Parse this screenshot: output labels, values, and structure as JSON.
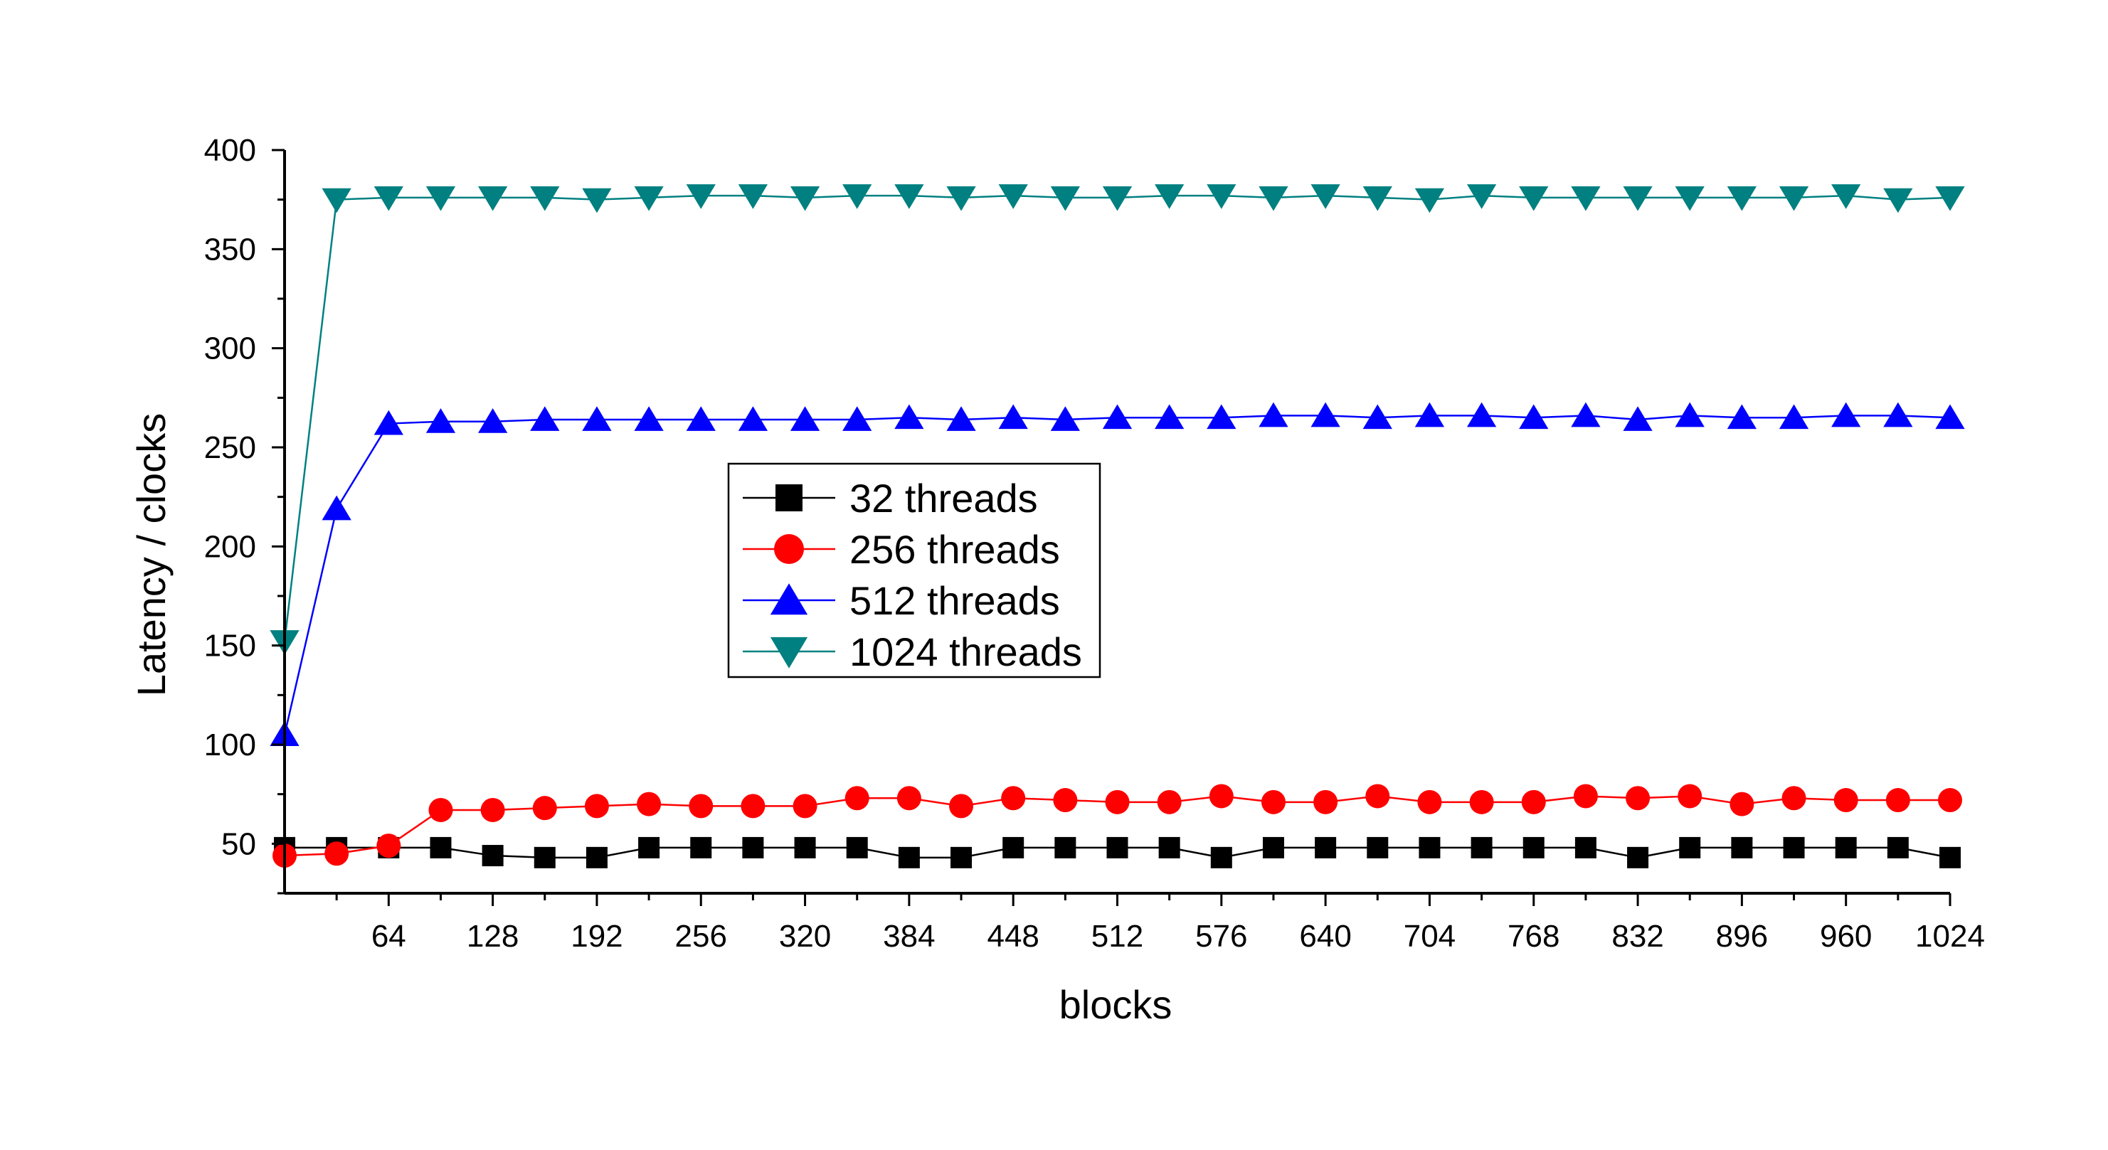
{
  "chart_data": {
    "type": "line",
    "xlabel": "blocks",
    "ylabel": "Latency / clocks",
    "xlim": [
      0,
      1024
    ],
    "ylim": [
      25,
      400
    ],
    "xticks": [
      64,
      128,
      192,
      256,
      320,
      384,
      448,
      512,
      576,
      640,
      704,
      768,
      832,
      896,
      960,
      1024
    ],
    "yticks": [
      50,
      100,
      150,
      200,
      250,
      300,
      350,
      400
    ],
    "grid": false,
    "legend_position": "center",
    "x": [
      0,
      32,
      64,
      96,
      128,
      160,
      192,
      224,
      256,
      288,
      320,
      352,
      384,
      416,
      448,
      480,
      512,
      544,
      576,
      608,
      640,
      672,
      704,
      736,
      768,
      800,
      832,
      864,
      896,
      928,
      960,
      992,
      1024
    ],
    "series": [
      {
        "name": "32 threads",
        "color": "#000000",
        "marker": "square",
        "values": [
          48,
          48,
          48,
          48,
          44,
          43,
          43,
          48,
          48,
          48,
          48,
          48,
          43,
          43,
          48,
          48,
          48,
          48,
          43,
          48,
          48,
          48,
          48,
          48,
          48,
          48,
          43,
          48,
          48,
          48,
          48,
          48,
          43
        ]
      },
      {
        "name": "256 threads",
        "color": "#ff0000",
        "marker": "circle",
        "values": [
          44,
          45,
          49,
          67,
          67,
          68,
          69,
          70,
          69,
          69,
          69,
          73,
          73,
          69,
          73,
          72,
          71,
          71,
          74,
          71,
          71,
          74,
          71,
          71,
          71,
          74,
          73,
          74,
          70,
          73,
          72,
          72,
          72
        ]
      },
      {
        "name": "512 threads",
        "color": "#0000ff",
        "marker": "triangle-up",
        "values": [
          105,
          219,
          262,
          263,
          263,
          264,
          264,
          264,
          264,
          264,
          264,
          264,
          265,
          264,
          265,
          264,
          265,
          265,
          265,
          266,
          266,
          265,
          266,
          266,
          265,
          266,
          264,
          266,
          265,
          265,
          266,
          266,
          265
        ]
      },
      {
        "name": "1024 threads",
        "color": "#008080",
        "marker": "triangle-down",
        "values": [
          152,
          375,
          376,
          376,
          376,
          376,
          375,
          376,
          377,
          377,
          376,
          377,
          377,
          376,
          377,
          376,
          376,
          377,
          377,
          376,
          377,
          376,
          375,
          377,
          376,
          376,
          376,
          376,
          376,
          376,
          377,
          375,
          376
        ]
      }
    ]
  }
}
